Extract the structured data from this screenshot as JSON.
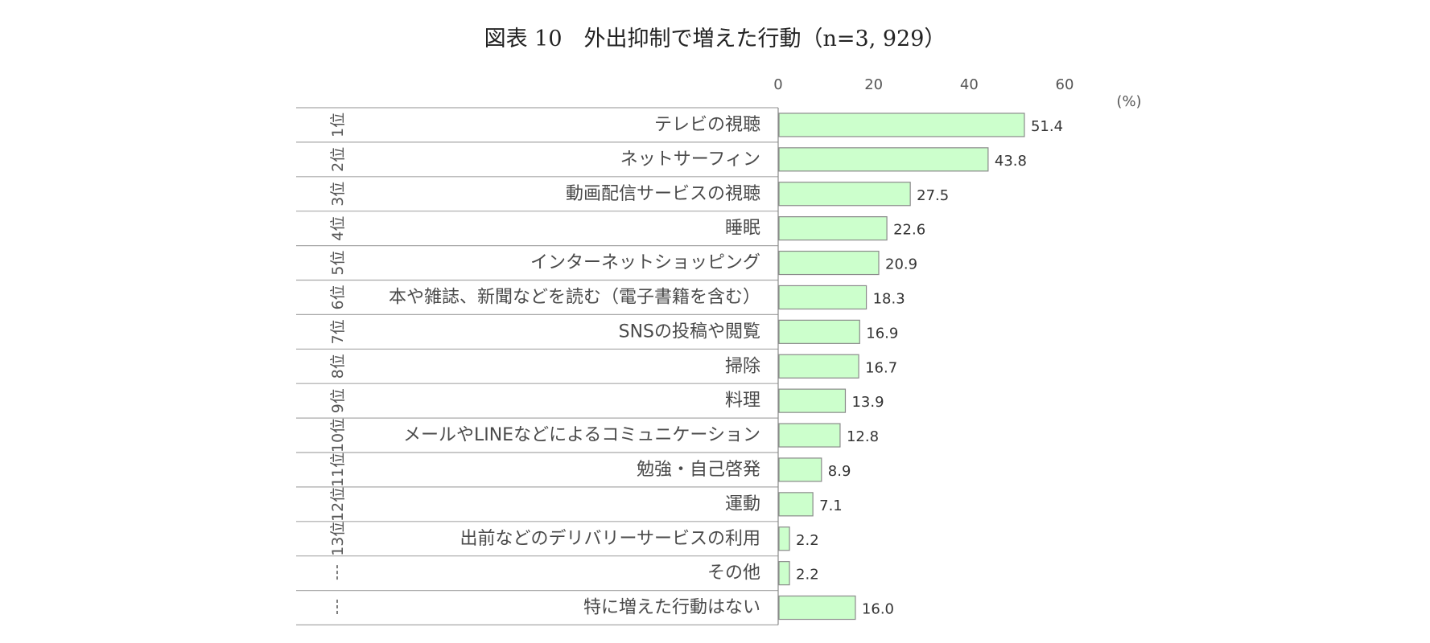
{
  "chart_data": {
    "type": "bar",
    "orientation": "horizontal",
    "title": "図表 10　外出抑制で増えた行動（n=3, 929）",
    "unit": "(%)",
    "xlim": [
      0,
      60
    ],
    "xticks": [
      0,
      20,
      40,
      60
    ],
    "bar_color": "#ccffcc",
    "bar_stroke": "#8a8a8a",
    "rows": [
      {
        "rank": "1位",
        "label": "テレビの視聴",
        "value": 51.4
      },
      {
        "rank": "2位",
        "label": "ネットサーフィン",
        "value": 43.8
      },
      {
        "rank": "3位",
        "label": "動画配信サービスの視聴",
        "value": 27.5
      },
      {
        "rank": "4位",
        "label": "睡眠",
        "value": 22.6
      },
      {
        "rank": "5位",
        "label": "インターネットショッピング",
        "value": 20.9
      },
      {
        "rank": "6位",
        "label": "本や雑誌、新聞などを読む（電子書籍を含む）",
        "value": 18.3
      },
      {
        "rank": "7位",
        "label": "SNSの投稿や閲覧",
        "value": 16.9
      },
      {
        "rank": "8位",
        "label": "掃除",
        "value": 16.7
      },
      {
        "rank": "9位",
        "label": "料理",
        "value": 13.9
      },
      {
        "rank": "10位",
        "label": "メールやLINEなどによるコミュニケーション",
        "value": 12.8
      },
      {
        "rank": "11位",
        "label": "勉強・自己啓発",
        "value": 8.9
      },
      {
        "rank": "12位",
        "label": "運動",
        "value": 7.1
      },
      {
        "rank": "13位",
        "label": "出前などのデリバリーサービスの利用",
        "value": 2.2
      },
      {
        "rank": "--",
        "label": "その他",
        "value": 2.2
      },
      {
        "rank": "--",
        "label": "特に増えた行動はない",
        "value": 16.0
      }
    ]
  }
}
